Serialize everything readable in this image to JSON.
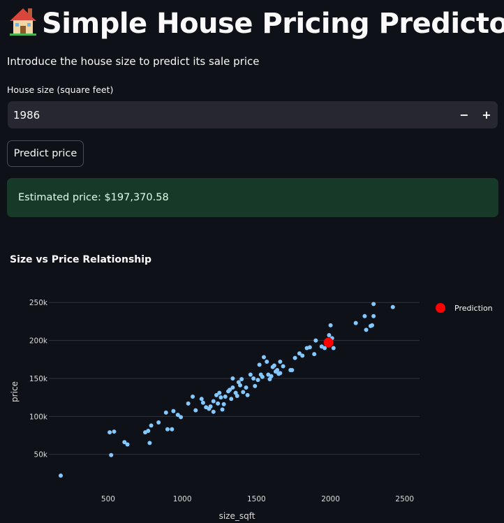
{
  "header": {
    "title_icon": "house-icon",
    "title": "Simple House Pricing Predictor",
    "subtitle": "Introduce the house size to predict its sale price"
  },
  "form": {
    "field_label": "House size (square feet)",
    "value": "1986",
    "minus_label": "−",
    "plus_label": "+",
    "button_label": "Predict price"
  },
  "result": {
    "text": "Estimated price: $197,370.58"
  },
  "colors": {
    "background": "#0e1117",
    "points": "#83c9ff",
    "prediction": "#ff0000",
    "success_bg": "#173928"
  },
  "chart_data": {
    "type": "scatter",
    "title": "Size vs Price Relationship",
    "xlabel": "size_sqft",
    "ylabel": "price",
    "xlim": [
      100,
      2600
    ],
    "ylim": [
      12000,
      264000
    ],
    "x_ticks": [
      500,
      1000,
      1500,
      2000,
      2500
    ],
    "x_tick_labels": [
      "500",
      "1000",
      "1500",
      "2000",
      "2500"
    ],
    "y_ticks": [
      50000,
      100000,
      150000,
      200000,
      250000
    ],
    "y_tick_labels": [
      "50k",
      "100k",
      "150k",
      "200k",
      "250k"
    ],
    "grid": "horizontal",
    "legend_position": "top-right",
    "series": [
      {
        "color": "#83c9ff",
        "points": [
          [
            180,
            22000
          ],
          [
            510,
            79000
          ],
          [
            520,
            49000
          ],
          [
            540,
            80000
          ],
          [
            610,
            66000
          ],
          [
            630,
            63000
          ],
          [
            750,
            79000
          ],
          [
            770,
            81000
          ],
          [
            780,
            65000
          ],
          [
            790,
            88000
          ],
          [
            840,
            92000
          ],
          [
            890,
            105000
          ],
          [
            900,
            83000
          ],
          [
            930,
            83000
          ],
          [
            940,
            107000
          ],
          [
            970,
            102000
          ],
          [
            990,
            99000
          ],
          [
            1040,
            117000
          ],
          [
            1070,
            126000
          ],
          [
            1090,
            108000
          ],
          [
            1130,
            123000
          ],
          [
            1140,
            118000
          ],
          [
            1160,
            112000
          ],
          [
            1180,
            110000
          ],
          [
            1190,
            113000
          ],
          [
            1210,
            106000
          ],
          [
            1210,
            120000
          ],
          [
            1230,
            128000
          ],
          [
            1240,
            117000
          ],
          [
            1250,
            131000
          ],
          [
            1260,
            125000
          ],
          [
            1270,
            109000
          ],
          [
            1280,
            116000
          ],
          [
            1290,
            126000
          ],
          [
            1310,
            133000
          ],
          [
            1320,
            135000
          ],
          [
            1330,
            123000
          ],
          [
            1340,
            138000
          ],
          [
            1340,
            150000
          ],
          [
            1360,
            131000
          ],
          [
            1370,
            127000
          ],
          [
            1380,
            145000
          ],
          [
            1390,
            141000
          ],
          [
            1400,
            149000
          ],
          [
            1410,
            132000
          ],
          [
            1430,
            138000
          ],
          [
            1440,
            128000
          ],
          [
            1460,
            155000
          ],
          [
            1480,
            150000
          ],
          [
            1490,
            140000
          ],
          [
            1510,
            148000
          ],
          [
            1520,
            168000
          ],
          [
            1530,
            155000
          ],
          [
            1540,
            152000
          ],
          [
            1550,
            178000
          ],
          [
            1570,
            172000
          ],
          [
            1580,
            155000
          ],
          [
            1590,
            149000
          ],
          [
            1600,
            153000
          ],
          [
            1610,
            165000
          ],
          [
            1620,
            167000
          ],
          [
            1630,
            159000
          ],
          [
            1640,
            161000
          ],
          [
            1650,
            156000
          ],
          [
            1660,
            157000
          ],
          [
            1660,
            172000
          ],
          [
            1680,
            166000
          ],
          [
            1730,
            161000
          ],
          [
            1740,
            161000
          ],
          [
            1760,
            177000
          ],
          [
            1790,
            183000
          ],
          [
            1810,
            180000
          ],
          [
            1840,
            190000
          ],
          [
            1860,
            191000
          ],
          [
            1890,
            182000
          ],
          [
            1900,
            200000
          ],
          [
            1940,
            192000
          ],
          [
            1960,
            190000
          ],
          [
            1990,
            207000
          ],
          [
            2000,
            220000
          ],
          [
            2010,
            203000
          ],
          [
            2020,
            190000
          ],
          [
            2170,
            223000
          ],
          [
            2230,
            232000
          ],
          [
            2240,
            214000
          ],
          [
            2270,
            219000
          ],
          [
            2280,
            220000
          ],
          [
            2290,
            248000
          ],
          [
            2290,
            232000
          ],
          [
            2420,
            244000
          ]
        ]
      },
      {
        "name": "Prediction",
        "color": "#ff0000",
        "points": [
          [
            1986,
            197370.58
          ]
        ]
      }
    ]
  }
}
